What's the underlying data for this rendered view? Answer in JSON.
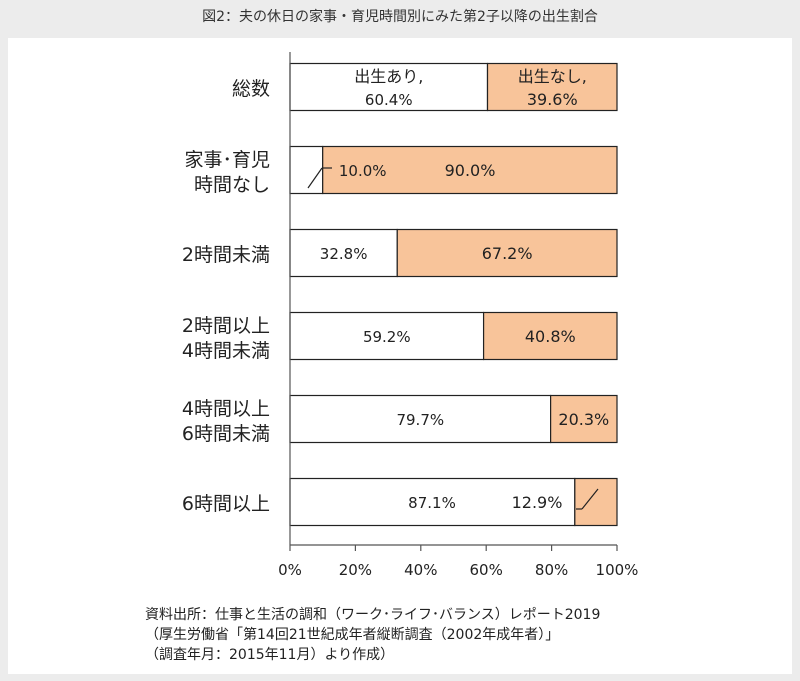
{
  "title": "図2：夫の休日の家事・育児時間別にみた第2子以降の出生割合",
  "chart_data": {
    "type": "bar",
    "orientation": "horizontal",
    "stacked": true,
    "categories": [
      [
        "総数"
      ],
      [
        "家事･育児",
        "時間なし"
      ],
      [
        "2時間未満"
      ],
      [
        "2時間以上",
        "4時間未満"
      ],
      [
        "4時間以上",
        "6時間未満"
      ],
      [
        "6時間以上"
      ]
    ],
    "series": [
      {
        "values": [
          60.4,
          10.0,
          32.8,
          59.2,
          79.7,
          87.1
        ],
        "color": "#ffffff"
      },
      {
        "values": [
          39.6,
          90.0,
          67.2,
          40.8,
          20.3,
          12.9
        ],
        "color": "#f8c49a"
      }
    ],
    "data_labels": [
      [
        "出生あり,",
        "60.4%"
      ],
      [
        "出生なし,",
        "39.6%"
      ],
      [
        "10.0%"
      ],
      [
        "90.0%"
      ],
      [
        "32.8%"
      ],
      [
        "67.2%"
      ],
      [
        "59.2%"
      ],
      [
        "40.8%"
      ],
      [
        "79.7%"
      ],
      [
        "20.3%"
      ],
      [
        "87.1%"
      ],
      [
        "12.9%"
      ]
    ],
    "x_ticks": [
      "0%",
      "20%",
      "40%",
      "60%",
      "80%",
      "100%"
    ],
    "xlim": [
      0,
      100
    ]
  },
  "notes": [
    "資料出所：仕事と生活の調和（ワーク･ライフ･バランス）レポート2019",
    "（厚生労働省「第14回21世紀成年者縦断調査（2002年成年者）」",
    "（調査年月：2015年11月）より作成）"
  ]
}
